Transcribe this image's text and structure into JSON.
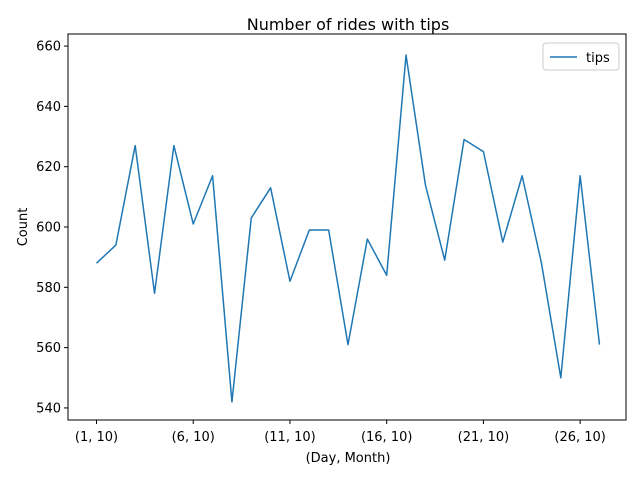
{
  "chart_data": {
    "type": "line",
    "title": "Number of rides with tips",
    "xlabel": "(Day, Month)",
    "ylabel": "Count",
    "x": [
      "(1, 10)",
      "(2, 10)",
      "(3, 10)",
      "(4, 10)",
      "(5, 10)",
      "(6, 10)",
      "(7, 10)",
      "(8, 10)",
      "(9, 10)",
      "(10, 10)",
      "(11, 10)",
      "(12, 10)",
      "(13, 10)",
      "(14, 10)",
      "(15, 10)",
      "(16, 10)",
      "(17, 10)",
      "(18, 10)",
      "(19, 10)",
      "(20, 10)",
      "(21, 10)",
      "(22, 10)",
      "(23, 10)",
      "(24, 10)",
      "(25, 10)",
      "(26, 10)",
      "(27, 10)"
    ],
    "xticks": [
      "(1, 10)",
      "(6, 10)",
      "(11, 10)",
      "(16, 10)",
      "(21, 10)",
      "(26, 10)"
    ],
    "series": [
      {
        "name": "tips",
        "color": "#1f77b4",
        "values": [
          588,
          594,
          627,
          578,
          627,
          601,
          617,
          542,
          603,
          613,
          582,
          599,
          599,
          561,
          596,
          584,
          657,
          614,
          589,
          629,
          625,
          595,
          617,
          588,
          550,
          617,
          561
        ]
      }
    ],
    "ylim": [
      536,
      664
    ],
    "yticks": [
      540,
      560,
      580,
      600,
      620,
      640,
      660
    ],
    "grid": false,
    "legend_position": "top-right"
  }
}
